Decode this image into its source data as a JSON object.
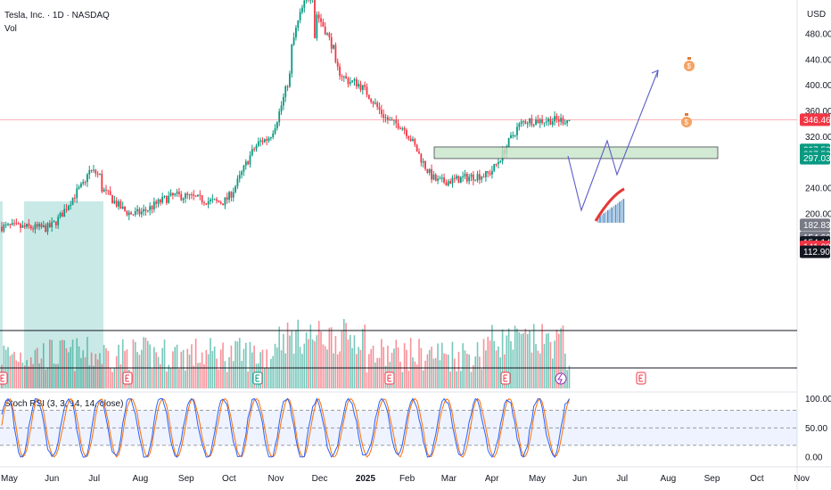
{
  "header": {
    "symbol_line": "Tesla, Inc. · 1D · NASDAQ",
    "volume_label": "Vol"
  },
  "currency": "USD",
  "rsi_label": "Stoch RSI (3, 3, 14, 14, close)",
  "price_axis": [
    {
      "label": "480.00",
      "value": 480
    },
    {
      "label": "440.00",
      "value": 440
    },
    {
      "label": "400.00",
      "value": 400
    },
    {
      "label": "360.00",
      "value": 360
    },
    {
      "label": "320.00",
      "value": 320
    },
    {
      "label": "240.00",
      "value": 240
    },
    {
      "label": "200.00",
      "value": 200
    }
  ],
  "rsi_axis": [
    {
      "label": "100.00",
      "value": 100
    },
    {
      "label": "50.00",
      "value": 50
    },
    {
      "label": "0.00",
      "value": 0
    }
  ],
  "time_axis": [
    {
      "label": "May",
      "i": 3
    },
    {
      "label": "Jun",
      "i": 24
    },
    {
      "label": "Jul",
      "i": 45
    },
    {
      "label": "Aug",
      "i": 66
    },
    {
      "label": "Sep",
      "i": 88
    },
    {
      "label": "Oct",
      "i": 109
    },
    {
      "label": "Nov",
      "i": 131
    },
    {
      "label": "Dec",
      "i": 152
    },
    {
      "label": "2025",
      "i": 173
    },
    {
      "label": "Feb",
      "i": 194
    },
    {
      "label": "Mar",
      "i": 214
    },
    {
      "label": "Apr",
      "i": 235
    },
    {
      "label": "May",
      "i": 256
    },
    {
      "label": "Jun",
      "i": 277
    },
    {
      "label": "Jul",
      "i": 298
    },
    {
      "label": "Aug",
      "i": 319
    },
    {
      "label": "Sep",
      "i": 340
    },
    {
      "label": "Oct",
      "i": 362
    },
    {
      "label": "Nov",
      "i": 383
    }
  ],
  "price_tags": [
    {
      "label": "346.46",
      "value": 346.46,
      "color": "#f23645"
    },
    {
      "label": "297.53",
      "value": 299.5,
      "color": "#089981"
    },
    {
      "label": "297.53",
      "value": 293.0,
      "color": "#089981"
    },
    {
      "label": "297.03",
      "value": 286.5,
      "color": "#089981"
    },
    {
      "label": "182.83",
      "value": 182.83,
      "color": "#787b86"
    },
    {
      "label": "154.66",
      "value": 163.0,
      "color": "#787b86"
    },
    {
      "label": "154.14",
      "value": 155.5,
      "color": "#131722"
    },
    {
      "label": "141.08",
      "value": 148.5,
      "color": "#f23645"
    },
    {
      "label": "112.90",
      "value": 141.0,
      "color": "#131722"
    }
  ],
  "colors": {
    "up": "#089981",
    "down": "#f23645",
    "k_line": "#2962ff",
    "d_line": "#ff6d00",
    "zone": "#c8e6c9",
    "shade": "#b2dfdb",
    "projection": "#5b5fc7"
  },
  "icons": [
    "earnings-icon",
    "dividend-icon",
    "money-bag-icon"
  ],
  "chart_data": {
    "type": "candlestick",
    "symbol": "Tesla, Inc.",
    "interval": "1D",
    "exchange": "NASDAQ",
    "last_price": 346.46,
    "y_range": [
      180,
      495
    ],
    "anchors": [
      {
        "month": "May 2024",
        "price": 180
      },
      {
        "month": "Jun 2024",
        "price": 178
      },
      {
        "month": "Jul 2024",
        "price": 248
      },
      {
        "month": "Aug 2024",
        "price": 200
      },
      {
        "month": "Sep 2024",
        "price": 228
      },
      {
        "month": "Oct 2024",
        "price": 218
      },
      {
        "month": "Nov 2024",
        "price": 315
      },
      {
        "month": "Dec 2024",
        "price": 480
      },
      {
        "month": "Jan 2025",
        "price": 405
      },
      {
        "month": "Feb 2025",
        "price": 340
      },
      {
        "month": "Mar 2025",
        "price": 250
      },
      {
        "month": "Apr 2025",
        "price": 260
      },
      {
        "month": "May 2025",
        "price": 345
      },
      {
        "month": "Jun 2025",
        "price": 346
      }
    ],
    "support_zone": [
      286,
      304
    ],
    "projection_path": [
      {
        "month": "Jun 2025",
        "price": 345
      },
      {
        "month": "Jun 2025",
        "price": 288
      },
      {
        "month": "Jul 2025",
        "price": 362
      },
      {
        "month": "Jul 2025",
        "price": 325
      },
      {
        "month": "Aug 2025",
        "price": 440
      }
    ],
    "horizontal_levels": [
      346.46,
      163.0,
      141.0
    ],
    "stoch_rsi": {
      "k": 3,
      "d": 3,
      "rsi_length": 14,
      "stoch_length": 14,
      "source": "close",
      "bands": [
        80,
        50,
        20
      ]
    }
  }
}
